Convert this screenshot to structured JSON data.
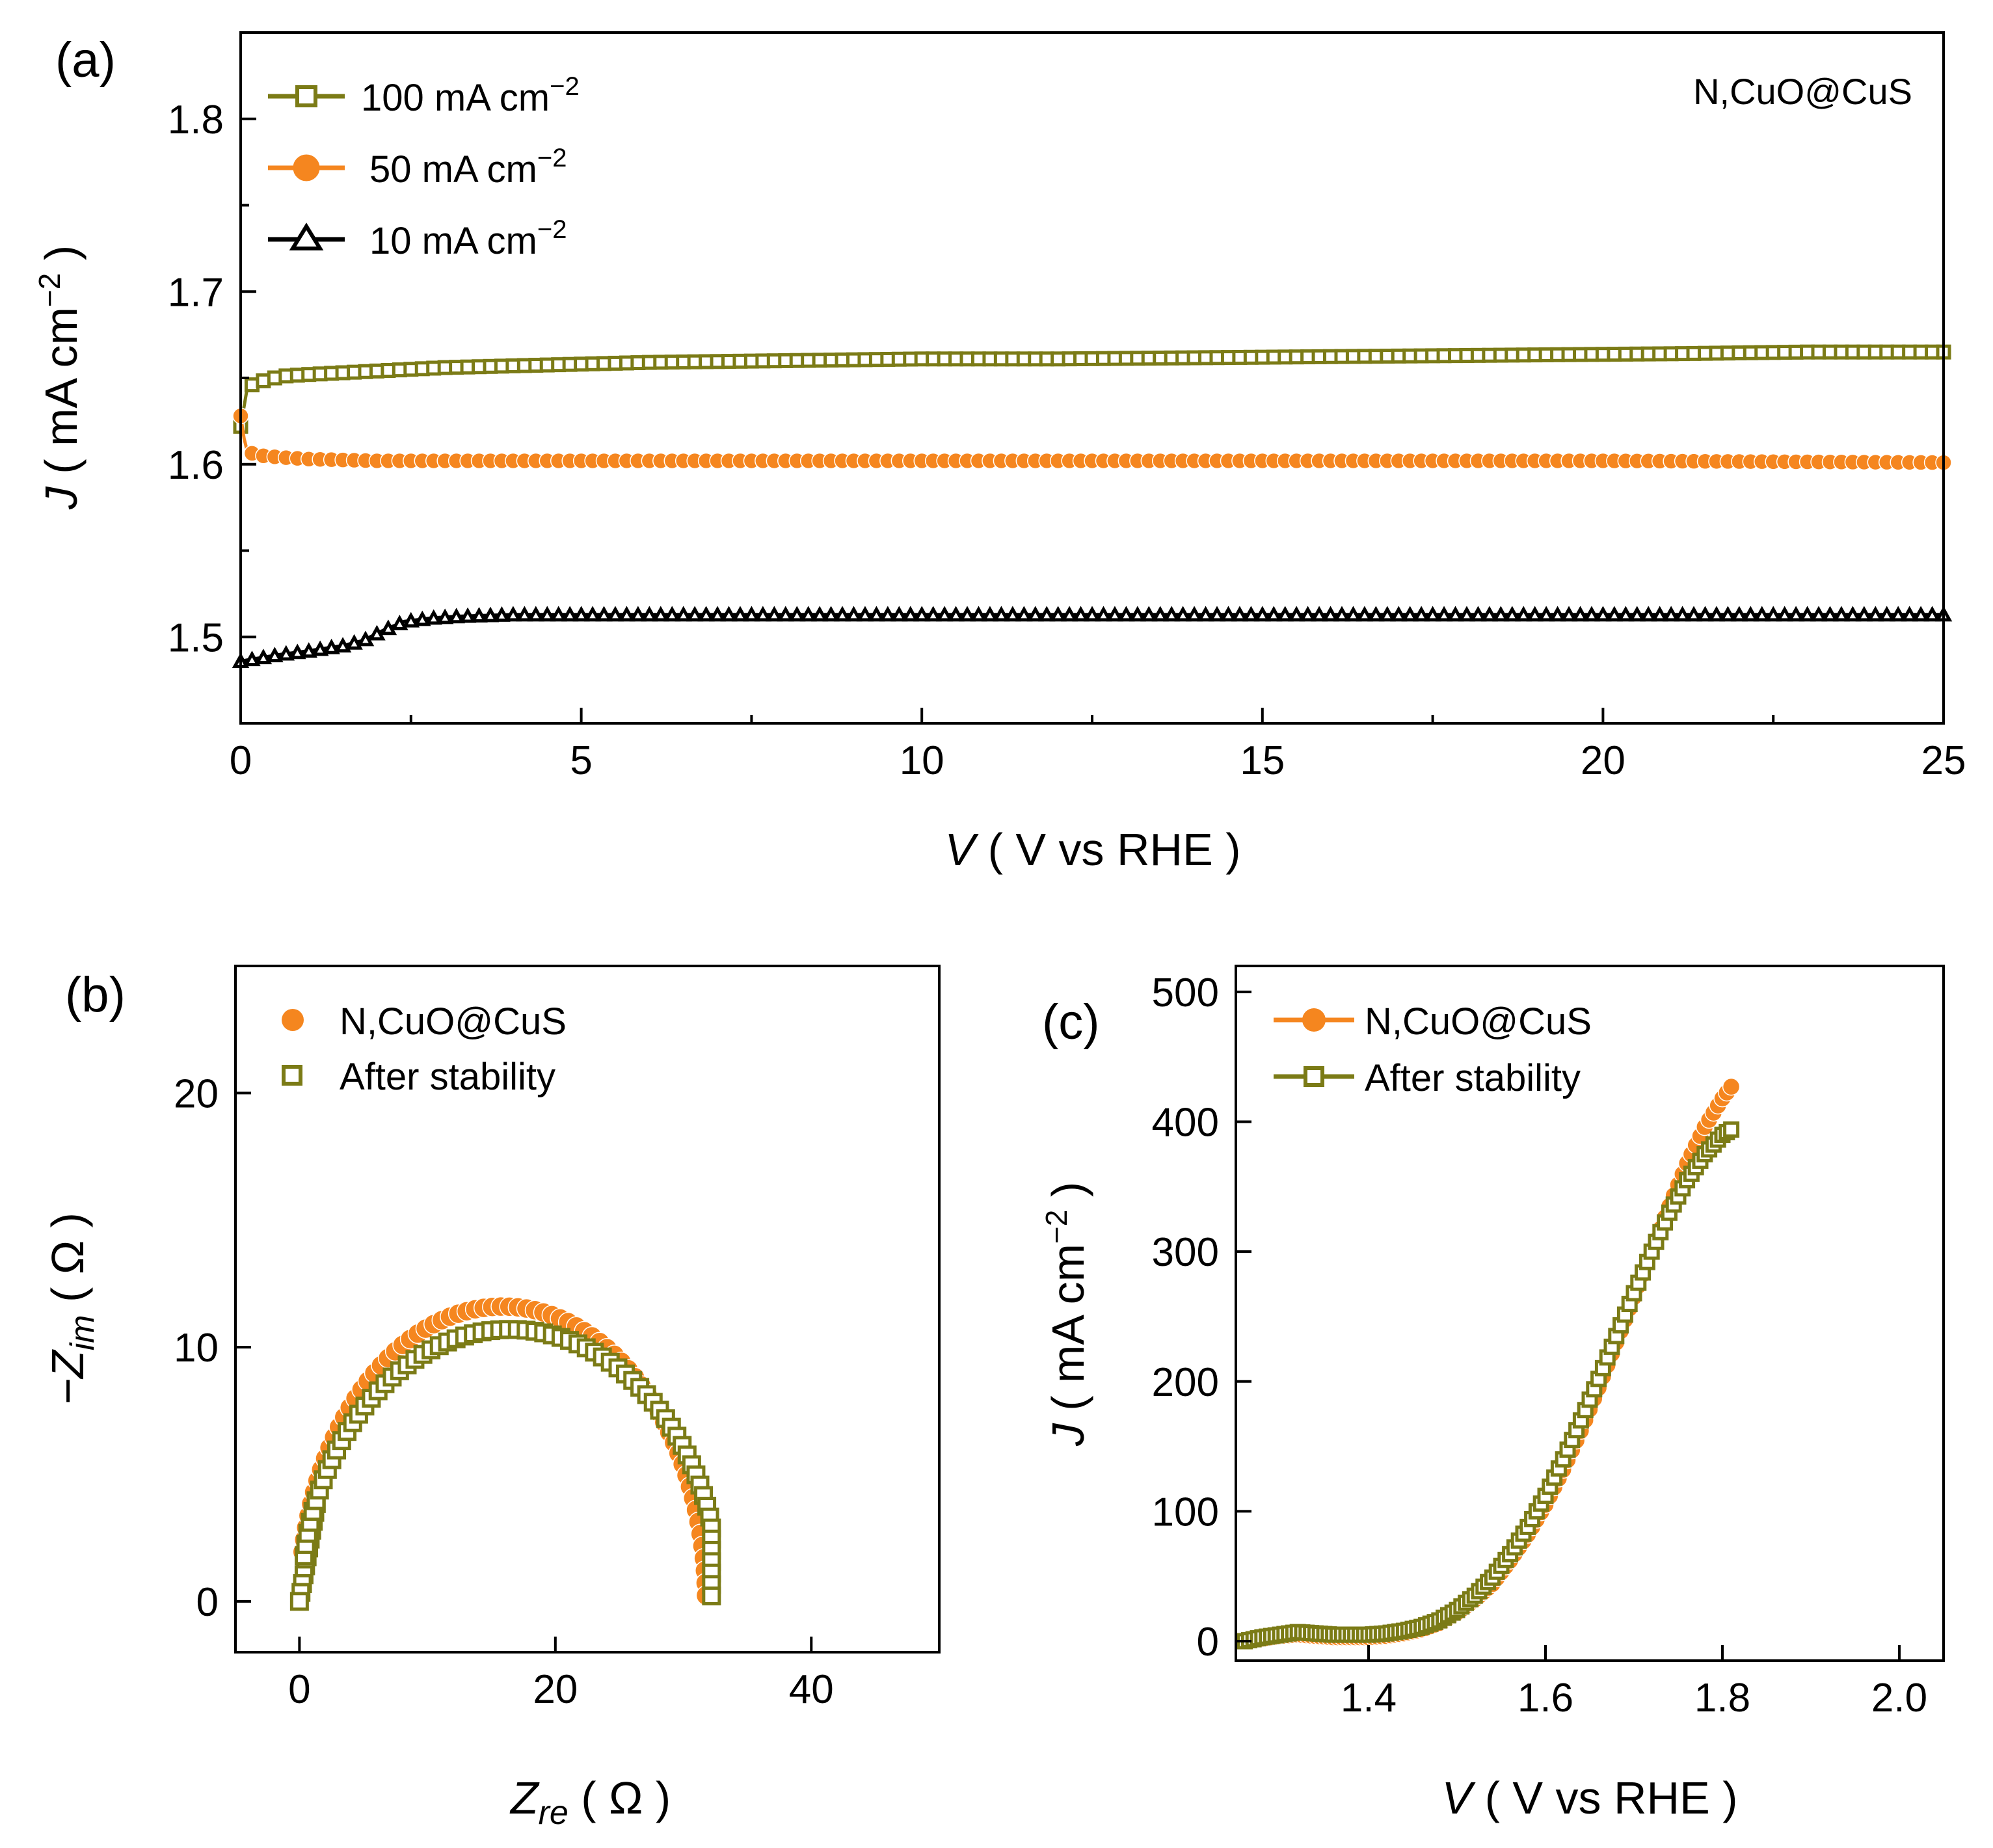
{
  "colors": {
    "olive": "#7b7b16",
    "orange": "#f5861f",
    "black": "#000000"
  },
  "chart_data": [
    {
      "type": "line",
      "panel_label": "(a)",
      "annotation": "N,CuO@CuS",
      "ylabel": "J ( mA cm−2 )",
      "ylabel_parts": {
        "italic": "J",
        "main": "( mA cm",
        "sup": "−2",
        "end": " )"
      },
      "xlabel": "V ( V vs RHE )",
      "xlabel_parts": {
        "italic": "V",
        "main": " ( V vs RHE )"
      },
      "xlim": [
        0,
        25
      ],
      "ylim": [
        1.45,
        1.85
      ],
      "xticks": [
        0,
        5,
        10,
        15,
        20,
        25
      ],
      "xtick_labels": [
        "0",
        "5",
        "10",
        "15",
        "20",
        "25"
      ],
      "yticks": [
        1.5,
        1.6,
        1.7,
        1.8
      ],
      "ytick_labels": [
        "1.5",
        "1.6",
        "1.7",
        "1.8"
      ],
      "grid": false,
      "legend_position": "top-left",
      "series": [
        {
          "name": "100 mA cm−2",
          "label_main": "100 mA cm",
          "label_sup": "−2",
          "marker": "square",
          "color": "#7b7b16",
          "x": [
            0,
            0.1,
            0.3,
            0.6,
            1,
            2,
            3,
            4,
            6,
            8,
            10,
            12,
            15,
            18,
            21,
            23,
            25
          ],
          "y": [
            1.622,
            1.645,
            1.648,
            1.651,
            1.652,
            1.654,
            1.656,
            1.657,
            1.659,
            1.66,
            1.661,
            1.661,
            1.662,
            1.663,
            1.664,
            1.665,
            1.665
          ]
        },
        {
          "name": "50 mA cm−2",
          "label_main": " 50 mA cm",
          "label_sup": "−2",
          "marker": "circle",
          "color": "#f5861f",
          "x": [
            0,
            0.05,
            0.1,
            0.3,
            0.6,
            1,
            2,
            4,
            8,
            12,
            16,
            20,
            25
          ],
          "y": [
            1.628,
            1.615,
            1.607,
            1.605,
            1.604,
            1.603,
            1.602,
            1.602,
            1.602,
            1.602,
            1.602,
            1.602,
            1.601
          ]
        },
        {
          "name": "10 mA cm−2",
          "label_main": " 10 mA cm",
          "label_sup": "−2",
          "marker": "triangle",
          "color": "#000000",
          "x": [
            0,
            0.3,
            0.6,
            1,
            1.5,
            1.8,
            2.1,
            2.4,
            2.8,
            3.2,
            4,
            6,
            10,
            15,
            20,
            25
          ],
          "y": [
            1.486,
            1.488,
            1.49,
            1.492,
            1.495,
            1.498,
            1.504,
            1.509,
            1.511,
            1.512,
            1.513,
            1.513,
            1.513,
            1.513,
            1.513,
            1.513
          ]
        }
      ]
    },
    {
      "type": "scatter",
      "panel_label": "(b)",
      "xlabel": "Zre ( Ω )",
      "xlabel_parts": {
        "italic": "Z",
        "sub": "re",
        "main": " ( Ω )"
      },
      "ylabel": "−Zim ( Ω )",
      "ylabel_parts": {
        "italic": "−Z",
        "sub": "im",
        "main": " ( Ω )"
      },
      "xlim": [
        -5,
        50
      ],
      "ylim": [
        -2,
        25
      ],
      "xticks": [
        0,
        20,
        40
      ],
      "xtick_labels": [
        "0",
        "20",
        "40"
      ],
      "yticks": [
        0,
        10,
        20
      ],
      "ytick_labels": [
        "0",
        "10",
        "20"
      ],
      "grid": false,
      "legend_position": "top-left",
      "series": [
        {
          "name": "N,CuO@CuS",
          "marker": "circle",
          "color": "#f5861f",
          "center": 15.9,
          "radius": 16.2,
          "peak": 11.6,
          "x_start": 0.0,
          "x_end": 32.1
        },
        {
          "name": "After stability",
          "marker": "square",
          "color": "#7b7b16",
          "center": 16.5,
          "radius": 16.7,
          "peak": 10.7,
          "x_start": 0.0,
          "x_end": 32.2
        }
      ]
    },
    {
      "type": "line",
      "panel_label": "(c)",
      "xlabel": "V ( V vs RHE )",
      "xlabel_parts": {
        "italic": "V",
        "main": " ( V vs RHE )"
      },
      "ylabel": "J ( mA cm−2 )",
      "ylabel_parts": {
        "italic": "J",
        "main": "( mA cm",
        "sup": "−2",
        "end": " )"
      },
      "xlim": [
        1.25,
        2.05
      ],
      "ylim": [
        -15,
        520
      ],
      "xticks": [
        1.4,
        1.6,
        1.8,
        2.0
      ],
      "xtick_labels": [
        "1.4",
        "1.6",
        "1.8",
        "2.0"
      ],
      "yticks": [
        0,
        100,
        200,
        300,
        400,
        500
      ],
      "ytick_labels": [
        "0",
        "100",
        "200",
        "300",
        "400",
        "500"
      ],
      "grid": false,
      "legend_position": "top-left",
      "series": [
        {
          "name": "N,CuO@CuS",
          "marker": "circle",
          "color": "#f5861f",
          "x": [
            1.26,
            1.28,
            1.3,
            1.32,
            1.34,
            1.36,
            1.38,
            1.4,
            1.42,
            1.44,
            1.46,
            1.48,
            1.5,
            1.52,
            1.54,
            1.56,
            1.58,
            1.6,
            1.62,
            1.64,
            1.66,
            1.68,
            1.7,
            1.72,
            1.74,
            1.76,
            1.78,
            1.8,
            1.81
          ],
          "y": [
            0,
            2,
            4,
            5,
            4,
            3,
            3,
            3,
            4,
            6,
            9,
            14,
            22,
            32,
            44,
            62,
            82,
            105,
            132,
            162,
            195,
            230,
            265,
            300,
            335,
            368,
            396,
            418,
            427
          ]
        },
        {
          "name": "After stability",
          "marker": "square",
          "color": "#7b7b16",
          "x": [
            1.26,
            1.28,
            1.3,
            1.32,
            1.34,
            1.36,
            1.38,
            1.4,
            1.42,
            1.44,
            1.46,
            1.48,
            1.5,
            1.52,
            1.54,
            1.56,
            1.58,
            1.6,
            1.62,
            1.64,
            1.66,
            1.68,
            1.7,
            1.72,
            1.74,
            1.76,
            1.78,
            1.8,
            1.81
          ],
          "y": [
            0,
            3,
            5,
            7,
            6,
            5,
            5,
            5,
            6,
            8,
            11,
            16,
            24,
            35,
            49,
            67,
            88,
            112,
            140,
            170,
            202,
            235,
            268,
            300,
            330,
            355,
            375,
            390,
            394
          ]
        }
      ]
    }
  ]
}
